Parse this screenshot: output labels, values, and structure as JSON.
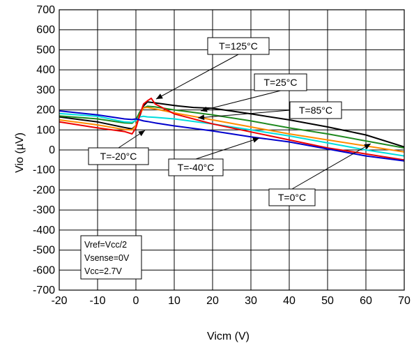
{
  "chart_data": {
    "type": "line",
    "xlabel": "Vicm (V)",
    "ylabel": "Vio (µV)",
    "xlim": [
      -20,
      70
    ],
    "ylim": [
      -700,
      700
    ],
    "xticks": [
      -20,
      -10,
      0,
      10,
      20,
      30,
      40,
      50,
      60,
      70
    ],
    "yticks": [
      700,
      600,
      500,
      400,
      300,
      200,
      100,
      0,
      -100,
      -200,
      -300,
      -400,
      -500,
      -600,
      -700
    ],
    "grid": true,
    "series": [
      {
        "name": "T=125°C",
        "color": "#000000",
        "x": [
          -20,
          -10,
          -3,
          -1,
          0,
          1,
          2,
          3,
          5,
          10,
          15,
          20,
          30,
          40,
          50,
          60,
          70
        ],
        "y": [
          165,
          140,
          112,
          105,
          122,
          170,
          220,
          240,
          235,
          222,
          212,
          208,
          180,
          150,
          115,
          75,
          15
        ]
      },
      {
        "name": "T=85°C",
        "color": "#1f8a1f",
        "x": [
          -20,
          -10,
          -3,
          -1,
          0,
          1,
          2,
          3,
          5,
          10,
          20,
          30,
          40,
          50,
          60,
          70
        ],
        "y": [
          170,
          155,
          135,
          133,
          150,
          190,
          210,
          218,
          215,
          200,
          175,
          145,
          110,
          80,
          45,
          10
        ]
      },
      {
        "name": "T=25°C",
        "color": "#ff8c00",
        "x": [
          -20,
          -10,
          -3,
          -1,
          0,
          1,
          2,
          3,
          5,
          10,
          20,
          30,
          40,
          50,
          60,
          70
        ],
        "y": [
          150,
          125,
          102,
          100,
          122,
          178,
          210,
          212,
          205,
          185,
          150,
          115,
          80,
          50,
          20,
          -10
        ]
      },
      {
        "name": "T=0°C",
        "color": "#00dddd",
        "x": [
          -20,
          -10,
          -3,
          -1,
          0,
          1,
          2,
          3,
          5,
          10,
          20,
          30,
          40,
          50,
          60,
          70
        ],
        "y": [
          182,
          168,
          140,
          138,
          148,
          165,
          168,
          165,
          163,
          155,
          130,
          100,
          70,
          35,
          0,
          -30
        ]
      },
      {
        "name": "T=-20°C",
        "color": "#ee0000",
        "x": [
          -20,
          -10,
          -3,
          -1,
          0,
          1,
          2,
          3,
          4,
          5,
          10,
          20,
          30,
          40,
          50,
          60,
          70
        ],
        "y": [
          140,
          110,
          92,
          80,
          110,
          175,
          230,
          245,
          258,
          230,
          180,
          130,
          90,
          50,
          10,
          -20,
          -50
        ]
      },
      {
        "name": "T=-40°C",
        "color": "#0000cc",
        "x": [
          -20,
          -10,
          -3,
          -1,
          0,
          1,
          2,
          3,
          5,
          10,
          20,
          30,
          40,
          50,
          60,
          70
        ],
        "y": [
          195,
          175,
          155,
          152,
          155,
          150,
          145,
          142,
          135,
          120,
          95,
          65,
          40,
          5,
          -30,
          -55
        ]
      }
    ],
    "annotations": [
      {
        "text": "T=125°C",
        "series": "T=125°C"
      },
      {
        "text": "T=25°C",
        "series": "T=25°C"
      },
      {
        "text": "T=85°C",
        "series": "T=85°C"
      },
      {
        "text": "T=-20°C",
        "series": "T=-20°C"
      },
      {
        "text": "T=-40°C",
        "series": "T=-40°C"
      },
      {
        "text": "T=0°C",
        "series": "T=0°C"
      }
    ],
    "conditions": [
      "Vref=Vcc/2",
      "Vsense=0V",
      "Vcc=2.7V"
    ]
  }
}
